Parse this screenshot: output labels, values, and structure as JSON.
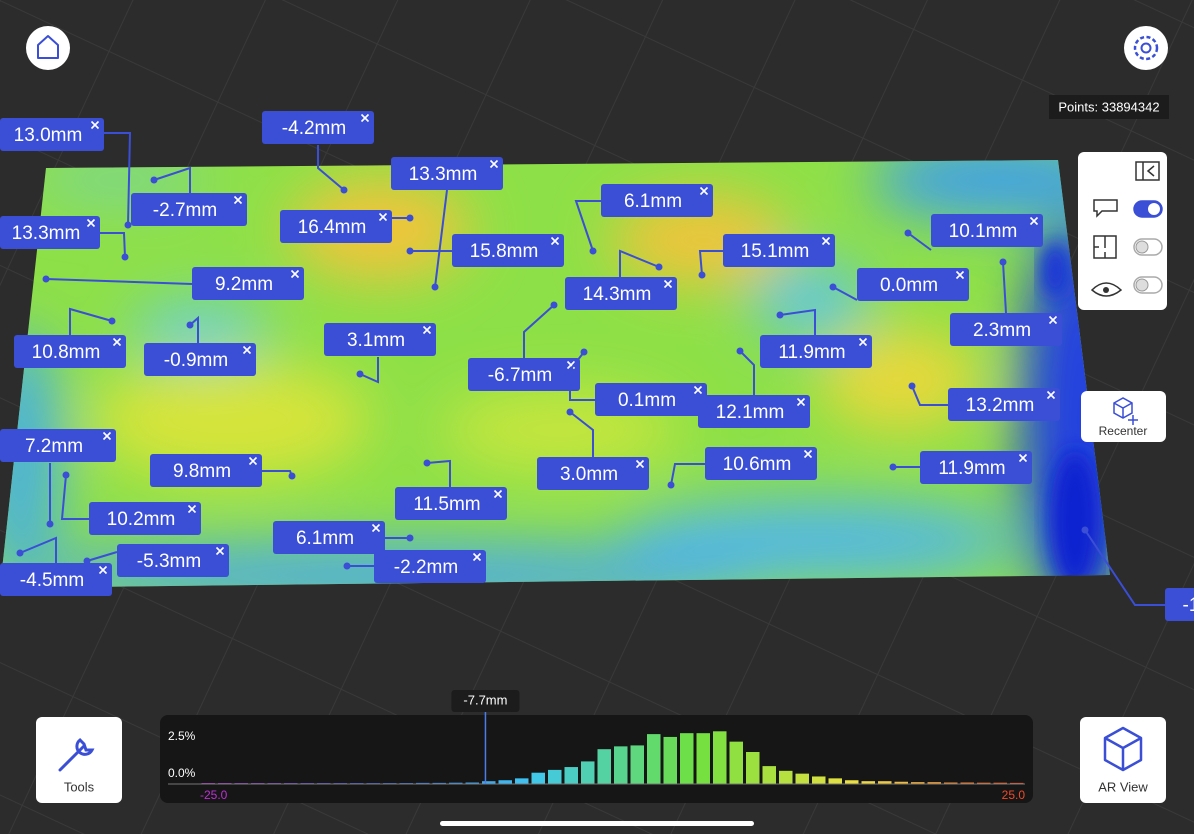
{
  "points": "Points: 33894342",
  "annotations": [
    "13.0mm",
    "-4.2mm",
    "13.3mm",
    "-2.7mm",
    "13.3mm",
    "16.4mm",
    "15.8mm",
    "6.1mm",
    "15.1mm",
    "10.1mm",
    "14.3mm",
    "0.0mm",
    "9.2mm",
    "2.3mm",
    "10.8mm",
    "-0.9mm",
    "3.1mm",
    "11.9mm",
    "-6.7mm",
    "0.1mm",
    "12.1mm",
    "13.2mm",
    "7.2mm",
    "9.8mm",
    "11.5mm",
    "3.0mm",
    "10.6mm",
    "11.9mm",
    "10.2mm",
    "6.1mm",
    "-5.3mm",
    "-2.2mm",
    "-4.5mm",
    "-1"
  ],
  "side_panel": {
    "toggles": [
      true,
      false,
      false
    ]
  },
  "buttons": {
    "recenter": "Recenter",
    "tools": "Tools",
    "ar_view": "AR View"
  },
  "chart_data": {
    "type": "histogram",
    "bins": [
      -25,
      -24,
      -23,
      -22,
      -21,
      -20,
      -19,
      -18,
      -17,
      -16,
      -15,
      -14,
      -13,
      -12,
      -11,
      -10,
      -9,
      -8,
      -7,
      -6,
      -5,
      -4,
      -3,
      -2,
      -1,
      0,
      1,
      2,
      3,
      4,
      5,
      6,
      7,
      8,
      9,
      10,
      11,
      12,
      13,
      14,
      15,
      16,
      17,
      18,
      19,
      20,
      21,
      22,
      23,
      24,
      25
    ],
    "values": [
      0.05,
      0.05,
      0.05,
      0.05,
      0.05,
      0.05,
      0.05,
      0.05,
      0.05,
      0.05,
      0.05,
      0.05,
      0.05,
      0.06,
      0.06,
      0.07,
      0.08,
      0.15,
      0.2,
      0.3,
      0.6,
      0.75,
      0.9,
      1.2,
      1.85,
      2.0,
      2.05,
      2.65,
      2.5,
      2.7,
      2.7,
      2.8,
      2.25,
      1.7,
      0.95,
      0.7,
      0.55,
      0.4,
      0.3,
      0.2,
      0.15,
      0.15,
      0.12,
      0.1,
      0.1,
      0.08,
      0.08,
      0.07,
      0.07,
      0.06
    ],
    "colormap": [
      "#c02fd8",
      "#3a56e6",
      "#3fc6f0",
      "#6fe040",
      "#f0e040",
      "#f04a2a"
    ],
    "xlim": [
      -25,
      25
    ],
    "xticks": [
      {
        "value": -25,
        "label": "-25.0"
      },
      {
        "value": 25,
        "label": "25.0"
      }
    ],
    "ylim": [
      0,
      3.4
    ],
    "yticks": [
      {
        "value": 0,
        "label": "0.0%"
      },
      {
        "value": 2.5,
        "label": "2.5%"
      }
    ],
    "marker": {
      "value": -7.7,
      "label": "-7.7mm"
    }
  }
}
